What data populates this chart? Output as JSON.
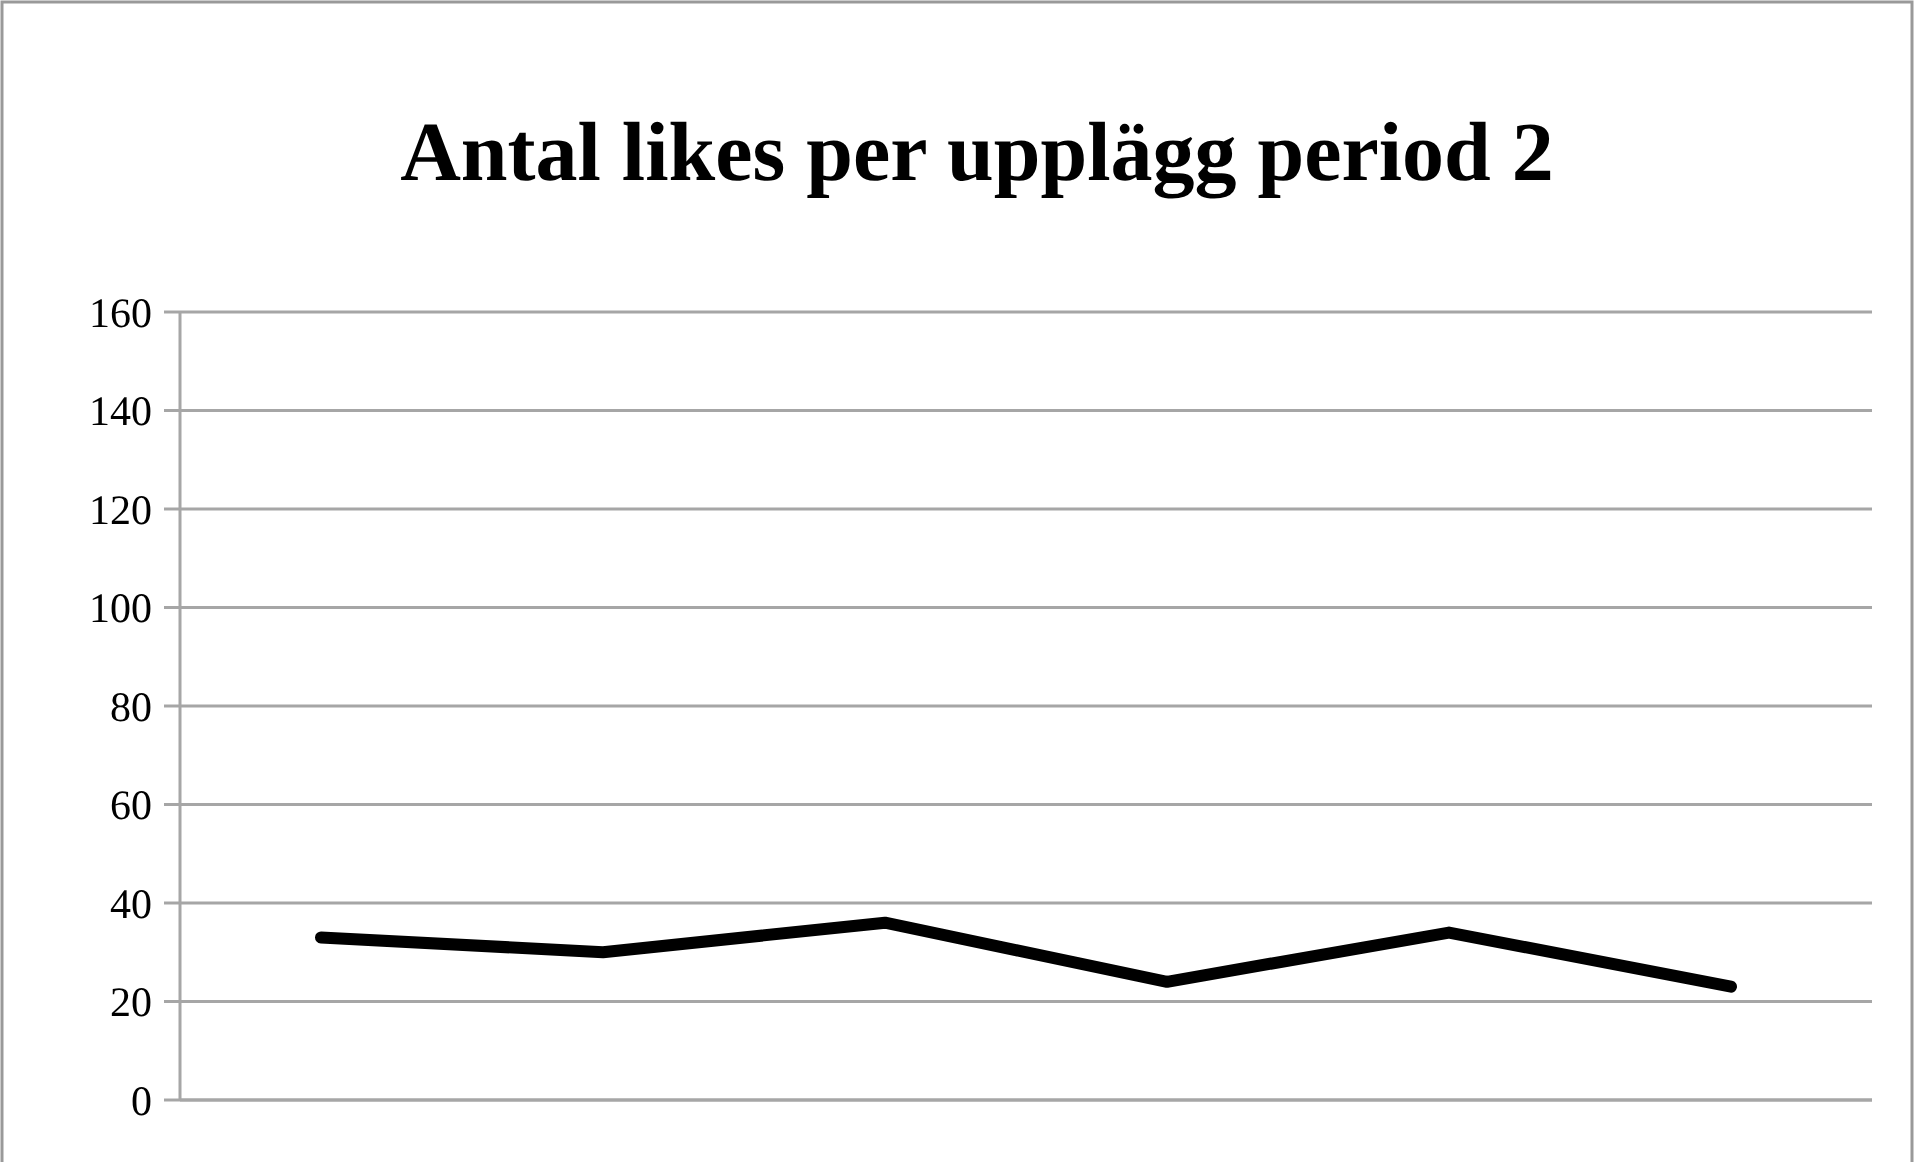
{
  "chart_data": {
    "type": "line",
    "title": "Antal likes per upplägg period 2",
    "categories": [
      null,
      null,
      null,
      null,
      null,
      null
    ],
    "series": [
      {
        "color": "#000000",
        "values": [
          33,
          30,
          36,
          24,
          34,
          23
        ]
      }
    ],
    "ylim": [
      0,
      160
    ],
    "yticks": [
      0,
      20,
      40,
      60,
      80,
      100,
      120,
      140,
      160
    ],
    "grid": "y",
    "marker": "none",
    "line_style": "solid"
  }
}
